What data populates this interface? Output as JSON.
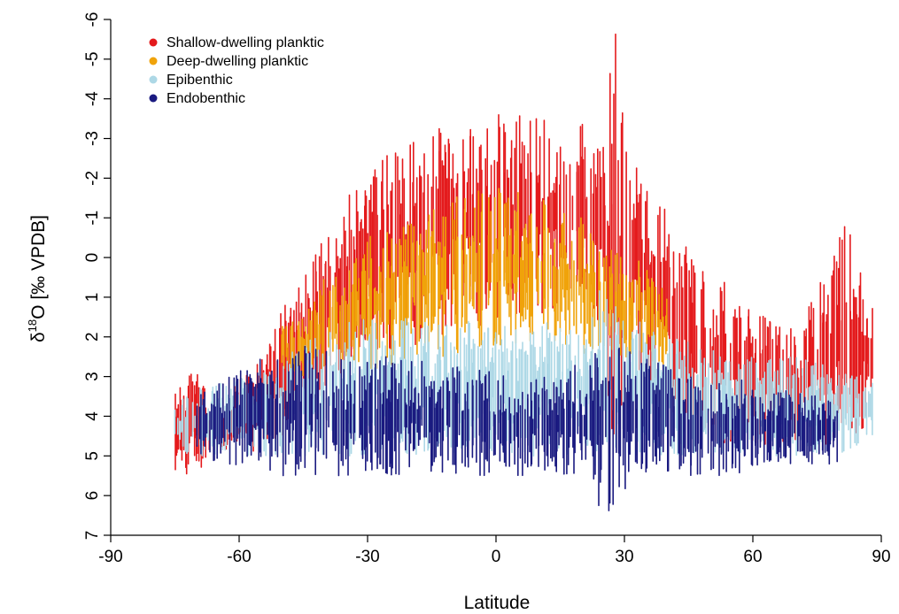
{
  "chart_data": {
    "type": "scatter",
    "title": "",
    "xlabel": "Latitude",
    "ylabel": "δ18O [‰ VPDB]",
    "ylabel_parts": {
      "delta": "δ",
      "superscript": "18",
      "rest": "O [‰ VPDB]"
    },
    "xlim": [
      -90,
      90
    ],
    "ylim": [
      7,
      -6
    ],
    "y_axis_reversed": true,
    "x_ticks": [
      "-90",
      "-60",
      "-30",
      "0",
      "30",
      "60",
      "90"
    ],
    "y_ticks": [
      "-6",
      "-5",
      "-4",
      "-3",
      "-2",
      "-1",
      "0",
      "1",
      "2",
      "3",
      "4",
      "5",
      "6",
      "7"
    ],
    "grid": false,
    "legend_position": "top-left",
    "series": [
      {
        "name": "Shallow-dwelling planktic",
        "color": "#e41a1c",
        "envelope": [
          [
            -75,
            3.3,
            5.4
          ],
          [
            -70,
            2.7,
            5.5
          ],
          [
            -65,
            3.6,
            5.1
          ],
          [
            -60,
            3.0,
            4.9
          ],
          [
            -55,
            2.5,
            5.0
          ],
          [
            -50,
            1.2,
            4.5
          ],
          [
            -45,
            0.5,
            4.0
          ],
          [
            -40,
            -0.6,
            3.5
          ],
          [
            -35,
            -1.5,
            3.2
          ],
          [
            -30,
            -2.0,
            2.8
          ],
          [
            -25,
            -2.8,
            2.6
          ],
          [
            -20,
            -3.0,
            2.3
          ],
          [
            -15,
            -3.2,
            2.0
          ],
          [
            -10,
            -3.4,
            1.9
          ],
          [
            -5,
            -3.6,
            1.8
          ],
          [
            0,
            -3.7,
            1.5
          ],
          [
            5,
            -3.6,
            1.5
          ],
          [
            10,
            -3.5,
            1.6
          ],
          [
            15,
            -3.4,
            1.4
          ],
          [
            20,
            -3.5,
            1.2
          ],
          [
            25,
            -3.0,
            1.8
          ],
          [
            28,
            -6.0,
            6.5
          ],
          [
            30,
            -3.0,
            2.5
          ],
          [
            35,
            -2.0,
            3.5
          ],
          [
            40,
            -1.2,
            3.8
          ],
          [
            45,
            -0.5,
            4.2
          ],
          [
            50,
            0.3,
            4.6
          ],
          [
            55,
            0.8,
            4.8
          ],
          [
            60,
            1.3,
            4.8
          ],
          [
            65,
            1.6,
            4.9
          ],
          [
            70,
            1.8,
            4.9
          ],
          [
            75,
            0.8,
            4.9
          ],
          [
            80,
            -0.5,
            4.8
          ],
          [
            82,
            -0.9,
            4.9
          ],
          [
            85,
            0.2,
            4.6
          ],
          [
            88,
            1.2,
            3.5
          ]
        ]
      },
      {
        "name": "Deep-dwelling planktic",
        "color": "#f0a30a",
        "envelope": [
          [
            -50,
            1.5,
            3.0
          ],
          [
            -45,
            1.5,
            3.0
          ],
          [
            -40,
            0.5,
            3.0
          ],
          [
            -35,
            0.0,
            3.0
          ],
          [
            -30,
            -0.5,
            3.0
          ],
          [
            -20,
            -1.0,
            2.5
          ],
          [
            -10,
            -1.5,
            2.5
          ],
          [
            0,
            -1.8,
            2.2
          ],
          [
            10,
            -1.5,
            2.2
          ],
          [
            20,
            -1.0,
            2.5
          ],
          [
            30,
            0.0,
            2.5
          ],
          [
            35,
            -0.5,
            2.5
          ],
          [
            40,
            1.0,
            3.0
          ]
        ]
      },
      {
        "name": "Epibenthic",
        "color": "#add8e6",
        "envelope": [
          [
            -75,
            3.5,
            5.0
          ],
          [
            -55,
            2.8,
            5.0
          ],
          [
            -45,
            2.2,
            5.0
          ],
          [
            -40,
            1.8,
            5.0
          ],
          [
            -30,
            1.5,
            5.0
          ],
          [
            -20,
            1.5,
            5.0
          ],
          [
            -10,
            1.5,
            5.0
          ],
          [
            0,
            1.7,
            5.0
          ],
          [
            10,
            1.5,
            5.0
          ],
          [
            20,
            1.5,
            5.0
          ],
          [
            25,
            0.5,
            5.5
          ],
          [
            30,
            1.5,
            5.0
          ],
          [
            40,
            1.8,
            5.0
          ],
          [
            50,
            2.3,
            5.0
          ],
          [
            60,
            2.5,
            5.0
          ],
          [
            70,
            2.5,
            5.0
          ],
          [
            80,
            2.8,
            5.0
          ],
          [
            88,
            3.0,
            4.5
          ]
        ]
      },
      {
        "name": "Endobenthic",
        "color": "#1a1a80",
        "envelope": [
          [
            -70,
            3.5,
            5.0
          ],
          [
            -55,
            2.5,
            5.5
          ],
          [
            -45,
            2.2,
            5.5
          ],
          [
            -35,
            2.5,
            5.5
          ],
          [
            -25,
            2.5,
            5.5
          ],
          [
            -15,
            2.5,
            5.5
          ],
          [
            -5,
            2.8,
            5.5
          ],
          [
            5,
            3.0,
            5.5
          ],
          [
            15,
            3.0,
            5.5
          ],
          [
            26,
            2.0,
            6.5
          ],
          [
            35,
            2.5,
            5.5
          ],
          [
            45,
            3.0,
            5.5
          ],
          [
            55,
            3.0,
            5.5
          ],
          [
            65,
            3.3,
            5.2
          ],
          [
            80,
            3.5,
            5.2
          ]
        ]
      }
    ]
  }
}
